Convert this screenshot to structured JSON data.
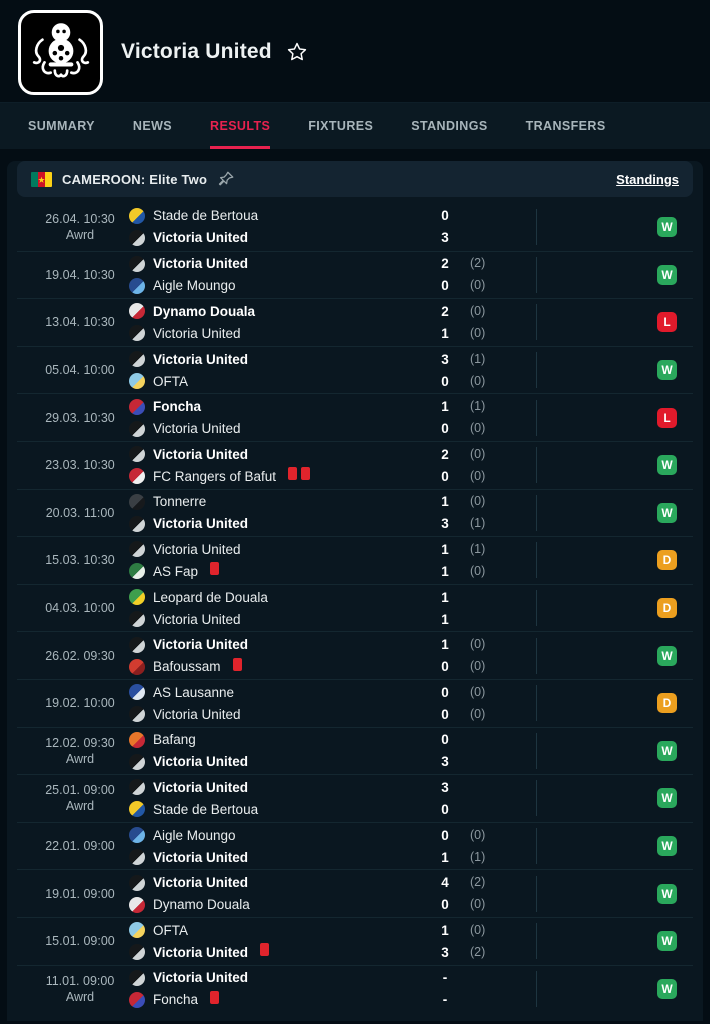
{
  "header": {
    "team_name": "Victoria United",
    "logo_icon": "octopus-club-crest-icon",
    "star_icon": "star-outline-icon"
  },
  "tabs": [
    {
      "label": "SUMMARY",
      "active": false
    },
    {
      "label": "NEWS",
      "active": false
    },
    {
      "label": "RESULTS",
      "active": true
    },
    {
      "label": "FIXTURES",
      "active": false
    },
    {
      "label": "STANDINGS",
      "active": false
    },
    {
      "label": "TRANSFERS",
      "active": false
    }
  ],
  "league": {
    "flag_icon": "cameroon-flag-icon",
    "title": "CAMEROON: Elite Two",
    "pin_icon": "pin-icon",
    "standings_label": "Standings"
  },
  "colors": {
    "accent": "#e8224f",
    "win": "#2aa85c",
    "loss": "#e11a2b",
    "draw": "#ec9f1f"
  },
  "matches": [
    {
      "date": "26.04. 10:30",
      "note": "Awrd",
      "home": {
        "name": "Stade de Bertoua",
        "score": "0",
        "ht": "",
        "bold": false,
        "red_cards": 0,
        "logo": [
          "#f2c928",
          "#2257a5"
        ]
      },
      "away": {
        "name": "Victoria United",
        "score": "3",
        "ht": "",
        "bold": true,
        "red_cards": 0,
        "logo": [
          "#15181a",
          "#cfd4d6"
        ]
      },
      "result": "W"
    },
    {
      "date": "19.04. 10:30",
      "note": "",
      "home": {
        "name": "Victoria United",
        "score": "2",
        "ht": "(2)",
        "bold": true,
        "red_cards": 0,
        "logo": [
          "#15181a",
          "#cfd4d6"
        ]
      },
      "away": {
        "name": "Aigle Moungo",
        "score": "0",
        "ht": "(0)",
        "bold": false,
        "red_cards": 0,
        "logo": [
          "#274b8f",
          "#6db4e8"
        ]
      },
      "result": "W"
    },
    {
      "date": "13.04. 10:30",
      "note": "",
      "home": {
        "name": "Dynamo Douala",
        "score": "2",
        "ht": "(0)",
        "bold": true,
        "red_cards": 0,
        "logo": [
          "#e8e8e8",
          "#c62836"
        ]
      },
      "away": {
        "name": "Victoria United",
        "score": "1",
        "ht": "(0)",
        "bold": false,
        "red_cards": 0,
        "logo": [
          "#15181a",
          "#cfd4d6"
        ]
      },
      "result": "L"
    },
    {
      "date": "05.04. 10:00",
      "note": "",
      "home": {
        "name": "Victoria United",
        "score": "3",
        "ht": "(1)",
        "bold": true,
        "red_cards": 0,
        "logo": [
          "#15181a",
          "#cfd4d6"
        ]
      },
      "away": {
        "name": "OFTA",
        "score": "0",
        "ht": "(0)",
        "bold": false,
        "red_cards": 0,
        "logo": [
          "#8ecae6",
          "#f4d35e"
        ]
      },
      "result": "W"
    },
    {
      "date": "29.03. 10:30",
      "note": "",
      "home": {
        "name": "Foncha",
        "score": "1",
        "ht": "(1)",
        "bold": true,
        "red_cards": 0,
        "logo": [
          "#c62836",
          "#3b4db8"
        ]
      },
      "away": {
        "name": "Victoria United",
        "score": "0",
        "ht": "(0)",
        "bold": false,
        "red_cards": 0,
        "logo": [
          "#15181a",
          "#cfd4d6"
        ]
      },
      "result": "L"
    },
    {
      "date": "23.03. 10:30",
      "note": "",
      "home": {
        "name": "Victoria United",
        "score": "2",
        "ht": "(0)",
        "bold": true,
        "red_cards": 0,
        "logo": [
          "#15181a",
          "#cfd4d6"
        ]
      },
      "away": {
        "name": "FC Rangers of Bafut",
        "score": "0",
        "ht": "(0)",
        "bold": false,
        "red_cards": 2,
        "logo": [
          "#c62836",
          "#f0f0f0"
        ]
      },
      "result": "W"
    },
    {
      "date": "20.03. 11:00",
      "note": "",
      "home": {
        "name": "Tonnerre",
        "score": "1",
        "ht": "(0)",
        "bold": false,
        "red_cards": 0,
        "logo": [
          "#3a3f44",
          "#16191c"
        ]
      },
      "away": {
        "name": "Victoria United",
        "score": "3",
        "ht": "(1)",
        "bold": true,
        "red_cards": 0,
        "logo": [
          "#15181a",
          "#cfd4d6"
        ]
      },
      "result": "W"
    },
    {
      "date": "15.03. 10:30",
      "note": "",
      "home": {
        "name": "Victoria United",
        "score": "1",
        "ht": "(1)",
        "bold": false,
        "red_cards": 0,
        "logo": [
          "#15181a",
          "#cfd4d6"
        ]
      },
      "away": {
        "name": "AS Fap",
        "score": "1",
        "ht": "(0)",
        "bold": false,
        "red_cards": 1,
        "logo": [
          "#2e7d43",
          "#e8f0e8"
        ]
      },
      "result": "D"
    },
    {
      "date": "04.03. 10:00",
      "note": "",
      "home": {
        "name": "Leopard de Douala",
        "score": "1",
        "ht": "",
        "bold": false,
        "red_cards": 0,
        "logo": [
          "#3f9e4d",
          "#f2d028"
        ]
      },
      "away": {
        "name": "Victoria United",
        "score": "1",
        "ht": "",
        "bold": false,
        "red_cards": 0,
        "logo": [
          "#15181a",
          "#cfd4d6"
        ]
      },
      "result": "D"
    },
    {
      "date": "26.02. 09:30",
      "note": "",
      "home": {
        "name": "Victoria United",
        "score": "1",
        "ht": "(0)",
        "bold": true,
        "red_cards": 0,
        "logo": [
          "#15181a",
          "#cfd4d6"
        ]
      },
      "away": {
        "name": "Bafoussam",
        "score": "0",
        "ht": "(0)",
        "bold": false,
        "red_cards": 1,
        "logo": [
          "#d23c30",
          "#8c1f1f"
        ]
      },
      "result": "W"
    },
    {
      "date": "19.02. 10:00",
      "note": "",
      "home": {
        "name": "AS Lausanne",
        "score": "0",
        "ht": "(0)",
        "bold": false,
        "red_cards": 0,
        "logo": [
          "#2a4fa0",
          "#dfe8f2"
        ]
      },
      "away": {
        "name": "Victoria United",
        "score": "0",
        "ht": "(0)",
        "bold": false,
        "red_cards": 0,
        "logo": [
          "#15181a",
          "#cfd4d6"
        ]
      },
      "result": "D"
    },
    {
      "date": "12.02. 09:30",
      "note": "Awrd",
      "home": {
        "name": "Bafang",
        "score": "0",
        "ht": "",
        "bold": false,
        "red_cards": 0,
        "logo": [
          "#e8762a",
          "#c62836"
        ]
      },
      "away": {
        "name": "Victoria United",
        "score": "3",
        "ht": "",
        "bold": true,
        "red_cards": 0,
        "logo": [
          "#15181a",
          "#cfd4d6"
        ]
      },
      "result": "W"
    },
    {
      "date": "25.01. 09:00",
      "note": "Awrd",
      "home": {
        "name": "Victoria United",
        "score": "3",
        "ht": "",
        "bold": true,
        "red_cards": 0,
        "logo": [
          "#15181a",
          "#cfd4d6"
        ]
      },
      "away": {
        "name": "Stade de Bertoua",
        "score": "0",
        "ht": "",
        "bold": false,
        "red_cards": 0,
        "logo": [
          "#f2c928",
          "#2257a5"
        ]
      },
      "result": "W"
    },
    {
      "date": "22.01. 09:00",
      "note": "",
      "home": {
        "name": "Aigle Moungo",
        "score": "0",
        "ht": "(0)",
        "bold": false,
        "red_cards": 0,
        "logo": [
          "#274b8f",
          "#6db4e8"
        ]
      },
      "away": {
        "name": "Victoria United",
        "score": "1",
        "ht": "(1)",
        "bold": true,
        "red_cards": 0,
        "logo": [
          "#15181a",
          "#cfd4d6"
        ]
      },
      "result": "W"
    },
    {
      "date": "19.01. 09:00",
      "note": "",
      "home": {
        "name": "Victoria United",
        "score": "4",
        "ht": "(2)",
        "bold": true,
        "red_cards": 0,
        "logo": [
          "#15181a",
          "#cfd4d6"
        ]
      },
      "away": {
        "name": "Dynamo Douala",
        "score": "0",
        "ht": "(0)",
        "bold": false,
        "red_cards": 0,
        "logo": [
          "#e8e8e8",
          "#c62836"
        ]
      },
      "result": "W"
    },
    {
      "date": "15.01. 09:00",
      "note": "",
      "home": {
        "name": "OFTA",
        "score": "1",
        "ht": "(0)",
        "bold": false,
        "red_cards": 0,
        "logo": [
          "#8ecae6",
          "#f4d35e"
        ]
      },
      "away": {
        "name": "Victoria United",
        "score": "3",
        "ht": "(2)",
        "bold": true,
        "red_cards": 1,
        "logo": [
          "#15181a",
          "#cfd4d6"
        ]
      },
      "result": "W"
    },
    {
      "date": "11.01. 09:00",
      "note": "Awrd",
      "home": {
        "name": "Victoria United",
        "score": "-",
        "ht": "",
        "bold": true,
        "red_cards": 0,
        "logo": [
          "#15181a",
          "#cfd4d6"
        ]
      },
      "away": {
        "name": "Foncha",
        "score": "-",
        "ht": "",
        "bold": false,
        "red_cards": 1,
        "logo": [
          "#c62836",
          "#3b4db8"
        ]
      },
      "result": "W"
    }
  ]
}
